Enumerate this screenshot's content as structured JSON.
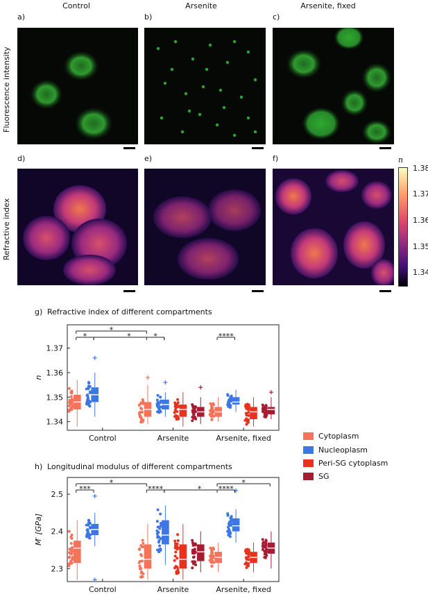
{
  "columns": [
    "Control",
    "Arsenite",
    "Arsenite, fixed"
  ],
  "panel_labels_top": [
    "a)",
    "b)",
    "c)"
  ],
  "panel_labels_bottom": [
    "d)",
    "e)",
    "f)"
  ],
  "row_labels": [
    "Fluorescence intensity",
    "Refractive index"
  ],
  "colorbar": {
    "symbol": "n",
    "ticks": [
      "1.38",
      "1.37",
      "1.36",
      "1.35",
      "1.34"
    ]
  },
  "colors": {
    "cytoplasm": "#f4735a",
    "nucleoplasm": "#3d77e6",
    "peri_sg": "#e8321e",
    "sg": "#a51d32"
  },
  "legend": [
    "Cytoplasm",
    "Nucleoplasm",
    "Peri-SG cytoplasm",
    "SG"
  ],
  "chart_data": [
    {
      "type": "box",
      "panel_label": "g)",
      "title": "Refractive index of different compartments",
      "ylabel": "n",
      "ylim": [
        1.3365,
        1.3795
      ],
      "yticks": [
        1.34,
        1.35,
        1.36,
        1.37
      ],
      "ytick_labels": [
        "1.34",
        "1.35",
        "1.36",
        "1.37"
      ],
      "categories": [
        "Control",
        "Arsenite",
        "Arsenite, fixed"
      ],
      "series": [
        {
          "name": "Cytoplasm",
          "boxes": [
            {
              "min": 1.338,
              "q1": 1.345,
              "median": 1.348,
              "q3": 1.351,
              "max": 1.357
            },
            {
              "min": 1.339,
              "q1": 1.342,
              "median": 1.345,
              "q3": 1.348,
              "max": 1.355
            },
            {
              "min": 1.34,
              "q1": 1.342,
              "median": 1.344,
              "q3": 1.346,
              "max": 1.35
            }
          ],
          "outliers": [
            [],
            [
              1.358
            ],
            []
          ]
        },
        {
          "name": "Nucleoplasm",
          "boxes": [
            {
              "min": 1.342,
              "q1": 1.348,
              "median": 1.351,
              "q3": 1.354,
              "max": 1.36
            },
            {
              "min": 1.342,
              "q1": 1.345,
              "median": 1.347,
              "q3": 1.349,
              "max": 1.352
            },
            {
              "min": 1.344,
              "q1": 1.347,
              "median": 1.348,
              "q3": 1.35,
              "max": 1.353
            }
          ],
          "outliers": [
            [
              1.366
            ],
            [
              1.356
            ],
            []
          ]
        },
        {
          "name": "Peri-SG cytoplasm",
          "boxes": [
            null,
            {
              "min": 1.338,
              "q1": 1.342,
              "median": 1.345,
              "q3": 1.347,
              "max": 1.352
            },
            {
              "min": 1.338,
              "q1": 1.341,
              "median": 1.344,
              "q3": 1.346,
              "max": 1.35
            }
          ],
          "outliers": [
            [],
            [],
            []
          ]
        },
        {
          "name": "SG",
          "boxes": [
            null,
            {
              "min": 1.339,
              "q1": 1.342,
              "median": 1.344,
              "q3": 1.346,
              "max": 1.35
            },
            {
              "min": 1.341,
              "q1": 1.343,
              "median": 1.345,
              "q3": 1.346,
              "max": 1.35
            }
          ],
          "outliers": [
            [],
            [
              1.354
            ],
            [
              1.352
            ]
          ]
        }
      ],
      "significance": [
        {
          "from": [
            0,
            0
          ],
          "to": [
            0,
            1
          ],
          "level": 0,
          "label": "*"
        },
        {
          "from": [
            0,
            1
          ],
          "to": [
            1,
            1
          ],
          "level": 0,
          "label": "*"
        },
        {
          "from": [
            1,
            0
          ],
          "to": [
            1,
            1
          ],
          "level": 0,
          "label": "*"
        },
        {
          "from": [
            0,
            0
          ],
          "to": [
            1,
            0
          ],
          "level": 1,
          "label": "*"
        },
        {
          "from": [
            2,
            0
          ],
          "to": [
            2,
            1
          ],
          "level": 0,
          "label": "****"
        }
      ]
    },
    {
      "type": "box",
      "panel_label": "h)",
      "title": "Longitudinal modulus of different compartments",
      "ylabel": "M′ [GPa]",
      "ylim": [
        2.265,
        2.545
      ],
      "yticks": [
        2.3,
        2.4,
        2.5
      ],
      "ytick_labels": [
        "2.3",
        "2.4",
        "2.5"
      ],
      "categories": [
        "Control",
        "Arsenite",
        "Arsenite, fixed"
      ],
      "series": [
        {
          "name": "Cytoplasm",
          "boxes": [
            {
              "min": 2.27,
              "q1": 2.315,
              "median": 2.355,
              "q3": 2.375,
              "max": 2.43
            },
            {
              "min": 2.27,
              "q1": 2.3,
              "median": 2.325,
              "q3": 2.365,
              "max": 2.42
            },
            {
              "min": 2.29,
              "q1": 2.315,
              "median": 2.33,
              "q3": 2.345,
              "max": 2.37
            }
          ],
          "outliers": [
            [],
            [],
            []
          ]
        },
        {
          "name": "Nucleoplasm",
          "boxes": [
            {
              "min": 2.36,
              "q1": 2.39,
              "median": 2.405,
              "q3": 2.42,
              "max": 2.45
            },
            {
              "min": 2.31,
              "q1": 2.365,
              "median": 2.39,
              "q3": 2.43,
              "max": 2.47
            },
            {
              "min": 2.37,
              "q1": 2.4,
              "median": 2.415,
              "q3": 2.435,
              "max": 2.46
            }
          ],
          "outliers": [
            [
              2.27,
              2.495
            ],
            [],
            [
              2.51
            ]
          ]
        },
        {
          "name": "Peri-SG cytoplasm",
          "boxes": [
            null,
            {
              "min": 2.27,
              "q1": 2.3,
              "median": 2.325,
              "q3": 2.365,
              "max": 2.42
            },
            {
              "min": 2.29,
              "q1": 2.315,
              "median": 2.33,
              "q3": 2.345,
              "max": 2.37
            }
          ],
          "outliers": [
            [],
            [],
            []
          ]
        },
        {
          "name": "SG",
          "boxes": [
            null,
            {
              "min": 2.29,
              "q1": 2.32,
              "median": 2.345,
              "q3": 2.365,
              "max": 2.4
            },
            {
              "min": 2.3,
              "q1": 2.34,
              "median": 2.355,
              "q3": 2.37,
              "max": 2.4
            }
          ],
          "outliers": [
            [],
            [],
            []
          ]
        }
      ],
      "significance": [
        {
          "from": [
            0,
            0
          ],
          "to": [
            0,
            1
          ],
          "level": 0,
          "label": "***"
        },
        {
          "from": [
            0,
            0
          ],
          "to": [
            1,
            0
          ],
          "level": 1,
          "label": "*"
        },
        {
          "from": [
            1,
            0
          ],
          "to": [
            1,
            1
          ],
          "level": 0,
          "label": "****"
        },
        {
          "from": [
            1,
            1
          ],
          "to": [
            2,
            1
          ],
          "level": 0,
          "label": "*"
        },
        {
          "from": [
            2,
            0
          ],
          "to": [
            2,
            1
          ],
          "level": 0,
          "label": "****"
        },
        {
          "from": [
            2,
            0
          ],
          "to": [
            2,
            3
          ],
          "level": 1,
          "label": "*"
        }
      ]
    }
  ]
}
